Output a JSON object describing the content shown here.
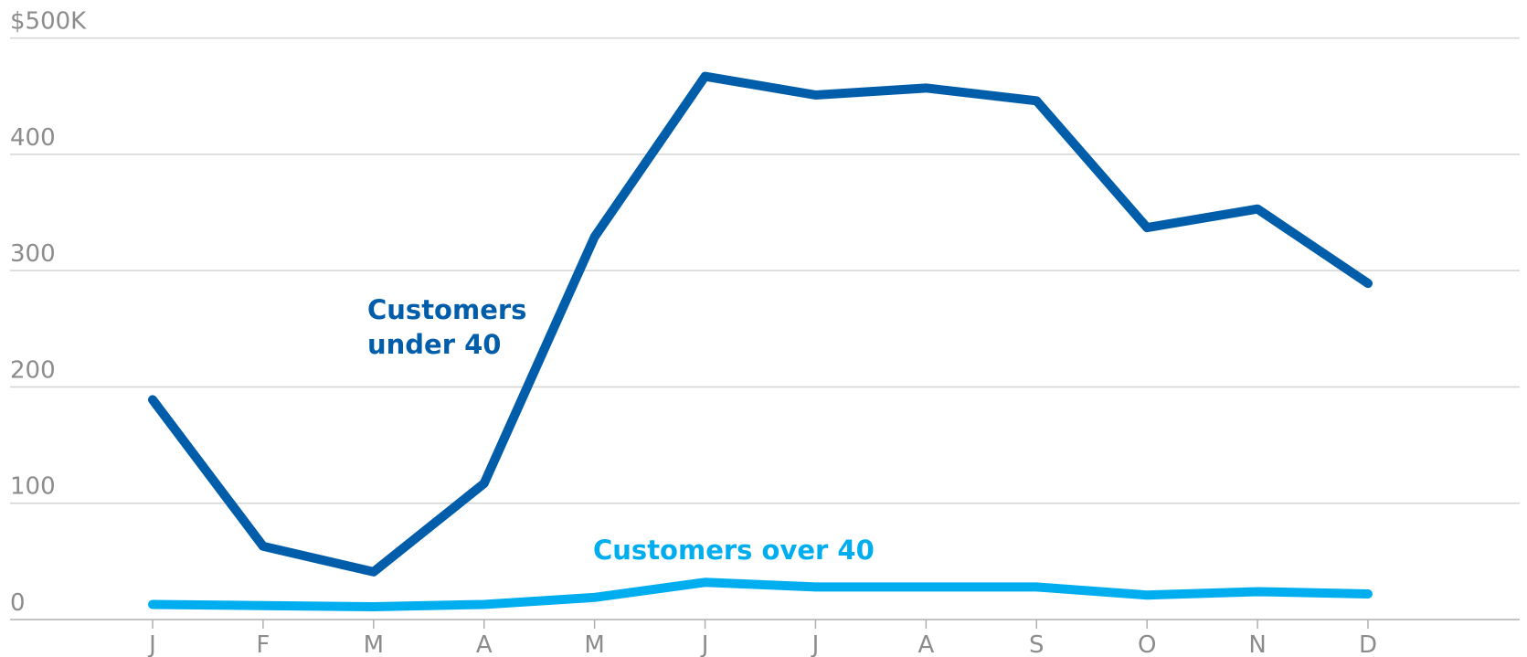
{
  "chart_data": {
    "type": "line",
    "categories": [
      "J",
      "F",
      "M",
      "A",
      "M",
      "J",
      "J",
      "A",
      "S",
      "O",
      "N",
      "D"
    ],
    "series": [
      {
        "name": "Customers under 40",
        "color": "#005daa",
        "values": [
          189,
          63,
          41,
          117,
          329,
          467,
          451,
          457,
          446,
          337,
          353,
          289
        ]
      },
      {
        "name": "Customers over 40",
        "color": "#00aeef",
        "values": [
          13,
          12,
          11,
          13,
          19,
          32,
          28,
          28,
          28,
          21,
          24,
          22
        ]
      }
    ],
    "ylim": [
      0,
      500
    ],
    "yticks": [
      0,
      100,
      200,
      300,
      400,
      {
        "value": 500,
        "label": "$500K"
      }
    ],
    "grid": true
  }
}
